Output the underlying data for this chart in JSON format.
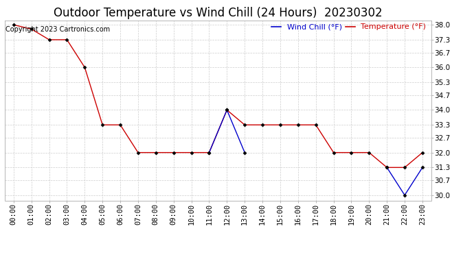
{
  "title": "Outdoor Temperature vs Wind Chill (24 Hours)  20230302",
  "copyright": "Copyright 2023 Cartronics.com",
  "legend_wind_chill": "Wind Chill (°F)",
  "legend_temperature": "Temperature (°F)",
  "x_labels": [
    "00:00",
    "01:00",
    "02:00",
    "03:00",
    "04:00",
    "05:00",
    "06:00",
    "07:00",
    "08:00",
    "09:00",
    "10:00",
    "11:00",
    "12:00",
    "13:00",
    "14:00",
    "15:00",
    "16:00",
    "17:00",
    "18:00",
    "19:00",
    "20:00",
    "21:00",
    "22:00",
    "23:00"
  ],
  "temperature": [
    38.0,
    37.8,
    37.3,
    37.3,
    36.0,
    33.3,
    33.3,
    32.0,
    32.0,
    32.0,
    32.0,
    32.0,
    34.0,
    33.3,
    33.3,
    33.3,
    33.3,
    33.3,
    32.0,
    32.0,
    32.0,
    31.3,
    31.3,
    32.0
  ],
  "wind_chill_segments": [
    {
      "x": [
        11,
        12,
        13
      ],
      "y": [
        32.0,
        34.0,
        32.0
      ]
    },
    {
      "x": [
        21,
        22,
        23
      ],
      "y": [
        31.3,
        30.0,
        31.3
      ]
    }
  ],
  "temp_color": "#cc0000",
  "wind_color": "#0000cc",
  "marker_color": "#000000",
  "ylim_min": 29.75,
  "ylim_max": 38.2,
  "y_ticks": [
    30.0,
    30.7,
    31.3,
    32.0,
    32.7,
    33.3,
    34.0,
    34.7,
    35.3,
    36.0,
    36.7,
    37.3,
    38.0
  ],
  "background_color": "#ffffff",
  "grid_color": "#cccccc",
  "title_fontsize": 12,
  "tick_fontsize": 7.5,
  "copyright_fontsize": 7
}
